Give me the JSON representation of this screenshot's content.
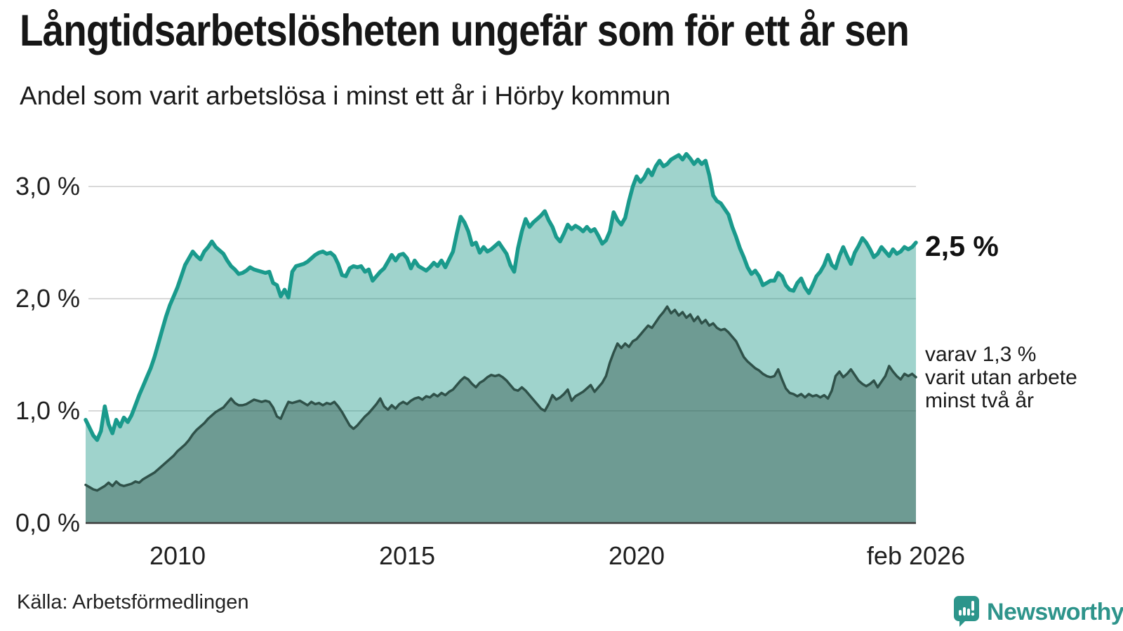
{
  "header": {
    "title": "Långtidsarbetslösheten ungefär som för ett år sen",
    "subtitle": "Andel som varit arbetslösa i minst ett år i Hörby kommun"
  },
  "chart_data": {
    "type": "area",
    "title": "Långtidsarbetslösheten ungefär som för ett år sen",
    "subtitle": "Andel som varit arbetslösa i minst ett år i Hörby kommun",
    "unit": "%",
    "x_start_year": 2008.0,
    "x_step_years": 0.0833333,
    "ylim": [
      0,
      3.3
    ],
    "grid": true,
    "grid_color": "#d9d9d9",
    "axis_color": "#3b3b3b",
    "y_ticks": [
      {
        "value": 3,
        "label": "3,0 %"
      },
      {
        "value": 2,
        "label": "2,0 %"
      },
      {
        "value": 1,
        "label": "1,0 %"
      },
      {
        "value": 0,
        "label": "0,0 %"
      }
    ],
    "x_ticks": [
      {
        "year": 2010,
        "label": "2010"
      },
      {
        "year": 2015,
        "label": "2015"
      },
      {
        "year": 2020,
        "label": "2020"
      },
      {
        "year": 2026.083,
        "label": "feb 2026"
      }
    ],
    "series": [
      {
        "name": "Arbetslösa minst ett år",
        "line_color": "#1a9a8c",
        "fill_color": "rgba(26,150,134,0.42)",
        "stroke_width": 5.5,
        "last_value_label": "2,5 %",
        "values": [
          0.92,
          0.85,
          0.78,
          0.74,
          0.82,
          1.04,
          0.88,
          0.8,
          0.92,
          0.86,
          0.94,
          0.9,
          0.96,
          1.05,
          1.14,
          1.22,
          1.3,
          1.38,
          1.48,
          1.6,
          1.72,
          1.84,
          1.94,
          2.02,
          2.1,
          2.2,
          2.3,
          2.36,
          2.42,
          2.38,
          2.35,
          2.42,
          2.46,
          2.51,
          2.46,
          2.43,
          2.4,
          2.34,
          2.29,
          2.26,
          2.22,
          2.23,
          2.25,
          2.28,
          2.26,
          2.25,
          2.24,
          2.23,
          2.24,
          2.14,
          2.12,
          2.02,
          2.08,
          2.01,
          2.24,
          2.29,
          2.3,
          2.31,
          2.33,
          2.36,
          2.39,
          2.41,
          2.42,
          2.4,
          2.41,
          2.38,
          2.31,
          2.21,
          2.2,
          2.27,
          2.29,
          2.28,
          2.29,
          2.24,
          2.26,
          2.16,
          2.2,
          2.24,
          2.27,
          2.33,
          2.39,
          2.34,
          2.39,
          2.4,
          2.36,
          2.27,
          2.34,
          2.29,
          2.27,
          2.25,
          2.28,
          2.32,
          2.29,
          2.34,
          2.28,
          2.35,
          2.42,
          2.58,
          2.73,
          2.68,
          2.6,
          2.48,
          2.5,
          2.41,
          2.46,
          2.42,
          2.44,
          2.47,
          2.5,
          2.45,
          2.4,
          2.3,
          2.24,
          2.45,
          2.6,
          2.71,
          2.64,
          2.68,
          2.71,
          2.74,
          2.78,
          2.7,
          2.64,
          2.55,
          2.51,
          2.58,
          2.66,
          2.62,
          2.65,
          2.63,
          2.6,
          2.64,
          2.6,
          2.62,
          2.56,
          2.49,
          2.52,
          2.6,
          2.77,
          2.7,
          2.66,
          2.72,
          2.87,
          3.0,
          3.09,
          3.04,
          3.08,
          3.15,
          3.1,
          3.18,
          3.23,
          3.18,
          3.2,
          3.24,
          3.26,
          3.28,
          3.24,
          3.29,
          3.25,
          3.2,
          3.24,
          3.2,
          3.23,
          3.1,
          2.92,
          2.87,
          2.85,
          2.8,
          2.75,
          2.64,
          2.55,
          2.45,
          2.37,
          2.28,
          2.22,
          2.25,
          2.2,
          2.12,
          2.14,
          2.16,
          2.16,
          2.23,
          2.2,
          2.12,
          2.08,
          2.07,
          2.14,
          2.18,
          2.1,
          2.05,
          2.12,
          2.2,
          2.24,
          2.3,
          2.39,
          2.3,
          2.27,
          2.38,
          2.46,
          2.38,
          2.31,
          2.41,
          2.47,
          2.54,
          2.5,
          2.44,
          2.37,
          2.4,
          2.46,
          2.42,
          2.38,
          2.44,
          2.4,
          2.42,
          2.46,
          2.44,
          2.46,
          2.5
        ]
      },
      {
        "name": "varav utan arbete minst två år",
        "line_color": "#2f5149",
        "fill_color": "rgba(47,81,73,0.43)",
        "stroke_width": 3.5,
        "last_value_label": "1,3 %",
        "values": [
          0.34,
          0.32,
          0.3,
          0.29,
          0.31,
          0.33,
          0.36,
          0.33,
          0.37,
          0.34,
          0.33,
          0.34,
          0.35,
          0.37,
          0.36,
          0.39,
          0.41,
          0.43,
          0.45,
          0.48,
          0.51,
          0.54,
          0.57,
          0.6,
          0.64,
          0.67,
          0.7,
          0.74,
          0.79,
          0.83,
          0.86,
          0.89,
          0.93,
          0.96,
          0.99,
          1.01,
          1.03,
          1.07,
          1.11,
          1.07,
          1.05,
          1.05,
          1.06,
          1.08,
          1.1,
          1.09,
          1.08,
          1.09,
          1.08,
          1.03,
          0.95,
          0.93,
          1.01,
          1.08,
          1.07,
          1.08,
          1.09,
          1.07,
          1.05,
          1.08,
          1.06,
          1.07,
          1.05,
          1.07,
          1.06,
          1.08,
          1.04,
          0.99,
          0.93,
          0.87,
          0.84,
          0.87,
          0.91,
          0.95,
          0.98,
          1.02,
          1.06,
          1.11,
          1.04,
          1.01,
          1.05,
          1.02,
          1.06,
          1.08,
          1.06,
          1.09,
          1.11,
          1.12,
          1.1,
          1.13,
          1.12,
          1.15,
          1.13,
          1.16,
          1.14,
          1.17,
          1.19,
          1.23,
          1.27,
          1.3,
          1.28,
          1.24,
          1.21,
          1.25,
          1.27,
          1.3,
          1.32,
          1.31,
          1.32,
          1.3,
          1.27,
          1.23,
          1.19,
          1.18,
          1.21,
          1.18,
          1.14,
          1.1,
          1.06,
          1.02,
          1.0,
          1.06,
          1.14,
          1.1,
          1.12,
          1.15,
          1.19,
          1.09,
          1.13,
          1.15,
          1.17,
          1.2,
          1.23,
          1.17,
          1.21,
          1.25,
          1.31,
          1.43,
          1.52,
          1.6,
          1.56,
          1.6,
          1.57,
          1.62,
          1.64,
          1.68,
          1.72,
          1.76,
          1.74,
          1.79,
          1.84,
          1.88,
          1.93,
          1.87,
          1.9,
          1.85,
          1.88,
          1.83,
          1.86,
          1.8,
          1.84,
          1.78,
          1.81,
          1.76,
          1.78,
          1.74,
          1.72,
          1.73,
          1.7,
          1.66,
          1.62,
          1.55,
          1.48,
          1.44,
          1.41,
          1.38,
          1.36,
          1.33,
          1.31,
          1.3,
          1.31,
          1.37,
          1.28,
          1.2,
          1.16,
          1.15,
          1.13,
          1.15,
          1.12,
          1.15,
          1.13,
          1.14,
          1.12,
          1.14,
          1.11,
          1.18,
          1.31,
          1.35,
          1.3,
          1.33,
          1.37,
          1.32,
          1.27,
          1.24,
          1.22,
          1.24,
          1.27,
          1.21,
          1.26,
          1.31,
          1.4,
          1.35,
          1.31,
          1.28,
          1.33,
          1.31,
          1.33,
          1.3
        ]
      }
    ],
    "end_labels": {
      "primary": "2,5 %",
      "annotation_lines": [
        "varav 1,3 %",
        "varit utan arbete",
        "minst två år"
      ]
    },
    "legend_position": "right-annotations"
  },
  "footer": {
    "source": "Källa: Arbetsförmedlingen",
    "brand": "Newsworthy",
    "brand_color": "#2e948b"
  }
}
